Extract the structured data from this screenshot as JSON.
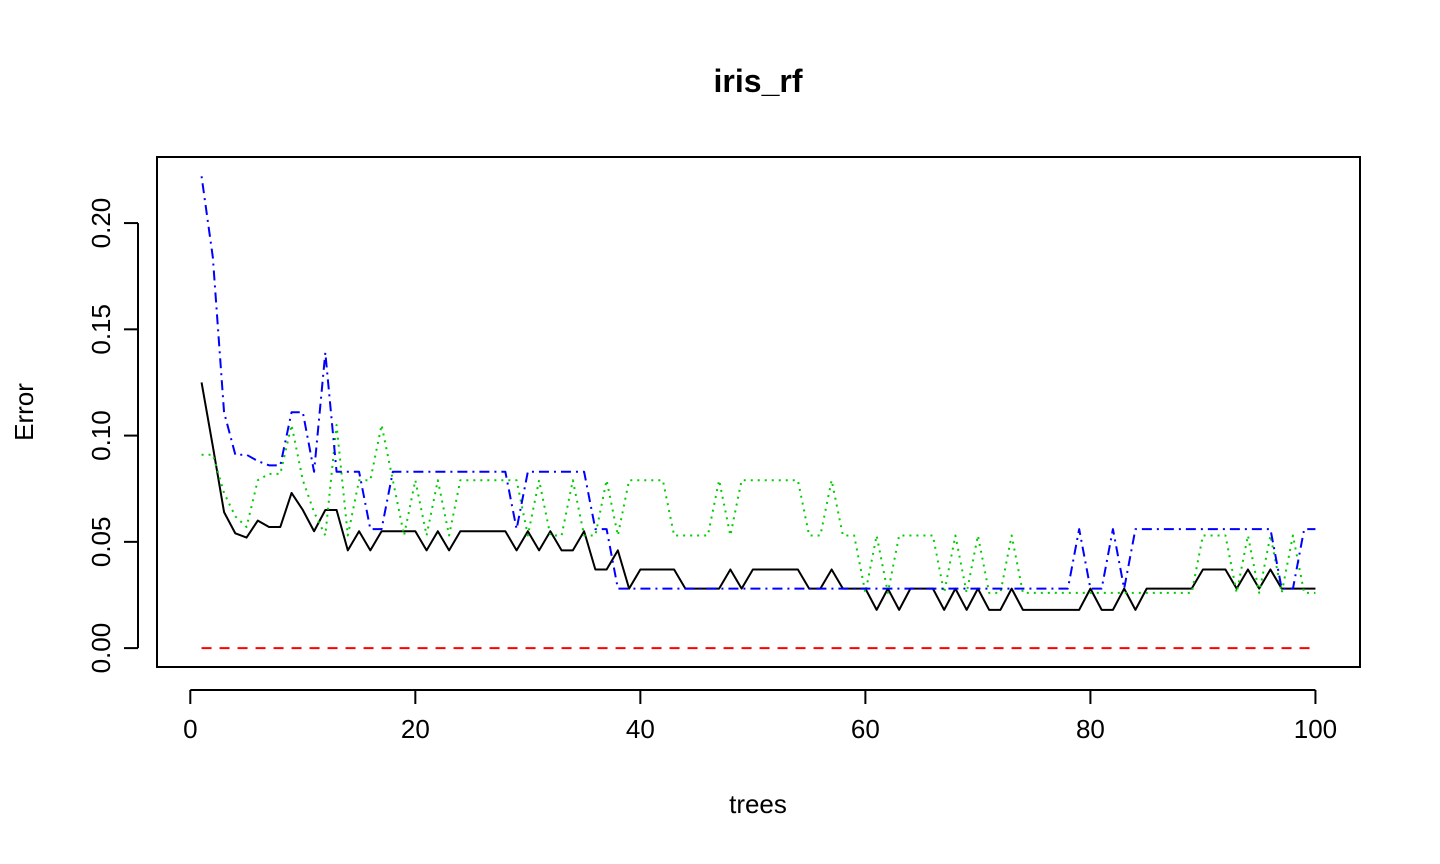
{
  "chart_data": {
    "type": "line",
    "title": "iris_rf",
    "xlabel": "trees",
    "ylabel": "Error",
    "xlim": [
      1,
      100
    ],
    "ylim": [
      0,
      0.2222
    ],
    "xticks": [
      0,
      20,
      40,
      60,
      80,
      100
    ],
    "xtick_labels": [
      "0",
      "20",
      "40",
      "60",
      "80",
      "100"
    ],
    "yticks": [
      0.0,
      0.05,
      0.1,
      0.15,
      0.2
    ],
    "ytick_labels": [
      "0.00",
      "0.05",
      "0.10",
      "0.15",
      "0.20"
    ],
    "grid": false,
    "legend": "none",
    "x": [
      1,
      2,
      3,
      4,
      5,
      6,
      7,
      8,
      9,
      10,
      11,
      12,
      13,
      14,
      15,
      16,
      17,
      18,
      19,
      20,
      21,
      22,
      23,
      24,
      25,
      26,
      27,
      28,
      29,
      30,
      31,
      32,
      33,
      34,
      35,
      36,
      37,
      38,
      39,
      40,
      41,
      42,
      43,
      44,
      45,
      46,
      47,
      48,
      49,
      50,
      51,
      52,
      53,
      54,
      55,
      56,
      57,
      58,
      59,
      60,
      61,
      62,
      63,
      64,
      65,
      66,
      67,
      68,
      69,
      70,
      71,
      72,
      73,
      74,
      75,
      76,
      77,
      78,
      79,
      80,
      81,
      82,
      83,
      84,
      85,
      86,
      87,
      88,
      89,
      90,
      91,
      92,
      93,
      94,
      95,
      96,
      97,
      98,
      99,
      100
    ],
    "series": [
      {
        "color": "#000000",
        "dash": "solid",
        "values": [
          0.125,
          0.095,
          0.064,
          0.054,
          0.052,
          0.06,
          0.057,
          0.057,
          0.073,
          0.065,
          0.055,
          0.065,
          0.065,
          0.046,
          0.055,
          0.046,
          0.055,
          0.055,
          0.055,
          0.055,
          0.046,
          0.055,
          0.046,
          0.055,
          0.055,
          0.055,
          0.055,
          0.055,
          0.046,
          0.055,
          0.046,
          0.055,
          0.046,
          0.046,
          0.055,
          0.037,
          0.037,
          0.046,
          0.028,
          0.037,
          0.037,
          0.037,
          0.037,
          0.028,
          0.028,
          0.028,
          0.028,
          0.037,
          0.028,
          0.037,
          0.037,
          0.037,
          0.037,
          0.037,
          0.028,
          0.028,
          0.037,
          0.028,
          0.028,
          0.028,
          0.018,
          0.028,
          0.018,
          0.028,
          0.028,
          0.028,
          0.018,
          0.028,
          0.018,
          0.028,
          0.018,
          0.018,
          0.028,
          0.018,
          0.018,
          0.018,
          0.018,
          0.018,
          0.018,
          0.028,
          0.018,
          0.018,
          0.028,
          0.018,
          0.028,
          0.028,
          0.028,
          0.028,
          0.028,
          0.037,
          0.037,
          0.037,
          0.028,
          0.037,
          0.028,
          0.037,
          0.028,
          0.028,
          0.028,
          0.028
        ]
      },
      {
        "color": "#ff0000",
        "dash": "dashed",
        "values": [
          0,
          0,
          0,
          0,
          0,
          0,
          0,
          0,
          0,
          0,
          0,
          0,
          0,
          0,
          0,
          0,
          0,
          0,
          0,
          0,
          0,
          0,
          0,
          0,
          0,
          0,
          0,
          0,
          0,
          0,
          0,
          0,
          0,
          0,
          0,
          0,
          0,
          0,
          0,
          0,
          0,
          0,
          0,
          0,
          0,
          0,
          0,
          0,
          0,
          0,
          0,
          0,
          0,
          0,
          0,
          0,
          0,
          0,
          0,
          0,
          0,
          0,
          0,
          0,
          0,
          0,
          0,
          0,
          0,
          0,
          0,
          0,
          0,
          0,
          0,
          0,
          0,
          0,
          0,
          0,
          0,
          0,
          0,
          0,
          0,
          0,
          0,
          0,
          0,
          0,
          0,
          0,
          0,
          0,
          0,
          0,
          0,
          0,
          0,
          0
        ]
      },
      {
        "color": "#00cd00",
        "dash": "dotted",
        "values": [
          0.091,
          0.091,
          0.073,
          0.062,
          0.057,
          0.079,
          0.082,
          0.082,
          0.105,
          0.079,
          0.064,
          0.053,
          0.105,
          0.053,
          0.079,
          0.079,
          0.105,
          0.079,
          0.053,
          0.079,
          0.053,
          0.079,
          0.053,
          0.079,
          0.079,
          0.079,
          0.079,
          0.079,
          0.079,
          0.053,
          0.079,
          0.053,
          0.053,
          0.079,
          0.053,
          0.053,
          0.079,
          0.053,
          0.079,
          0.079,
          0.079,
          0.079,
          0.053,
          0.053,
          0.053,
          0.053,
          0.079,
          0.053,
          0.079,
          0.079,
          0.079,
          0.079,
          0.079,
          0.079,
          0.053,
          0.053,
          0.079,
          0.053,
          0.053,
          0.026,
          0.053,
          0.026,
          0.053,
          0.053,
          0.053,
          0.053,
          0.026,
          0.053,
          0.026,
          0.053,
          0.026,
          0.026,
          0.053,
          0.026,
          0.026,
          0.026,
          0.026,
          0.026,
          0.026,
          0.026,
          0.026,
          0.026,
          0.026,
          0.026,
          0.026,
          0.026,
          0.026,
          0.026,
          0.026,
          0.053,
          0.053,
          0.053,
          0.026,
          0.053,
          0.026,
          0.053,
          0.026,
          0.053,
          0.026,
          0.026
        ]
      },
      {
        "color": "#0000ff",
        "dash": "dotdash",
        "values": [
          0.222,
          0.184,
          0.111,
          0.091,
          0.091,
          0.088,
          0.086,
          0.086,
          0.111,
          0.111,
          0.083,
          0.139,
          0.083,
          0.083,
          0.083,
          0.056,
          0.056,
          0.083,
          0.083,
          0.083,
          0.083,
          0.083,
          0.083,
          0.083,
          0.083,
          0.083,
          0.083,
          0.083,
          0.056,
          0.083,
          0.083,
          0.083,
          0.083,
          0.083,
          0.083,
          0.056,
          0.056,
          0.028,
          0.028,
          0.028,
          0.028,
          0.028,
          0.028,
          0.028,
          0.028,
          0.028,
          0.028,
          0.028,
          0.028,
          0.028,
          0.028,
          0.028,
          0.028,
          0.028,
          0.028,
          0.028,
          0.028,
          0.028,
          0.028,
          0.028,
          0.028,
          0.028,
          0.028,
          0.028,
          0.028,
          0.028,
          0.028,
          0.028,
          0.028,
          0.028,
          0.028,
          0.028,
          0.028,
          0.028,
          0.028,
          0.028,
          0.028,
          0.028,
          0.056,
          0.028,
          0.028,
          0.056,
          0.028,
          0.056,
          0.056,
          0.056,
          0.056,
          0.056,
          0.056,
          0.056,
          0.056,
          0.056,
          0.056,
          0.056,
          0.056,
          0.056,
          0.028,
          0.028,
          0.056,
          0.056
        ]
      }
    ]
  }
}
